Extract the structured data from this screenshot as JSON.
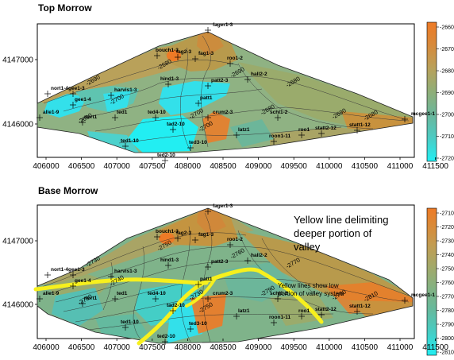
{
  "panels": [
    {
      "title": "Top Morrow",
      "y_ticks": [
        "4147000",
        "4146000"
      ],
      "x_ticks": [
        "406000",
        "406500",
        "407000",
        "407500",
        "408000",
        "408500",
        "409000",
        "409500",
        "410000",
        "410500",
        "411000",
        "411500"
      ],
      "colorbar": [
        "-2660",
        "-2670",
        "-2680",
        "-2690",
        "-2700",
        "-2710",
        "-2720"
      ],
      "wells": [
        "fager1-3",
        "bouch1-3",
        "fag2-3",
        "fag1-3",
        "roo1-2",
        "nort1-4",
        "hind1-3",
        "patt2-3",
        "gee1-3",
        "harvis1-3",
        "hall2-2",
        "patt1",
        "gee1-4",
        "alle1-9",
        "ted1",
        "ted4-10",
        "nort1",
        "schl1-2",
        "mcgee1-1",
        "tad2-10",
        "latz1",
        "statt1-12",
        "statt2-12",
        "roo1",
        "ted1-10",
        "ted3-10",
        "roon1-11",
        "ted2-10",
        "crum2-3"
      ],
      "contour_labels": [
        "-2690",
        "-2680",
        "-2700",
        "-2690",
        "-2680",
        "-2700",
        "-2690",
        "-2680",
        "-2700",
        "-2690",
        "-2680"
      ]
    },
    {
      "title": "Base Morrow",
      "y_ticks": [
        "4147000",
        "4146000"
      ],
      "x_ticks": [
        "406000",
        "406500",
        "407000",
        "407500",
        "408000",
        "408500",
        "409000",
        "409500",
        "410000",
        "410500",
        "411000",
        "411500"
      ],
      "colorbar": [
        "-2710",
        "-2720",
        "-2730",
        "-2740",
        "-2750",
        "-2760",
        "-2770",
        "-2780",
        "-2790",
        "-2800",
        "-2810"
      ],
      "wells": [
        "fager1-3",
        "bouch1-3",
        "fag2-3",
        "fag1-3",
        "roo1-2",
        "nort1-4",
        "hind1-3",
        "patt2-3",
        "gee1-3",
        "harvis1-3",
        "hall2-2",
        "patt1",
        "gee1-4",
        "alle1-9",
        "ted1",
        "ted4-10",
        "nort1",
        "schl1-2",
        "mcgee1-1",
        "tad2-10",
        "latz1",
        "statt1-12",
        "statt2-12",
        "roo1",
        "ted1-10",
        "ted3-10",
        "roon1-11",
        "ted2-10",
        "crum2-3"
      ],
      "contour_labels": [
        "-2730",
        "-2750",
        "-2740",
        "-2760",
        "-2770",
        "-2730",
        "-2780",
        "-2790",
        "-2750",
        "-2760",
        "-2810"
      ]
    }
  ],
  "annotation_main": [
    "Yellow line delimiting",
    "deeper portion of",
    "valley"
  ],
  "annotation_secondary": [
    "Yellow lines show low",
    "portion of valley system"
  ],
  "colors": {
    "orange": "#ee7a26",
    "brown": "#c8923e",
    "tan": "#b9a15a",
    "olive": "#9aab6c",
    "green": "#7fb38a",
    "teal": "#56bfb3",
    "cyan": "#33e0ea",
    "yellow": "#f7f01d"
  }
}
